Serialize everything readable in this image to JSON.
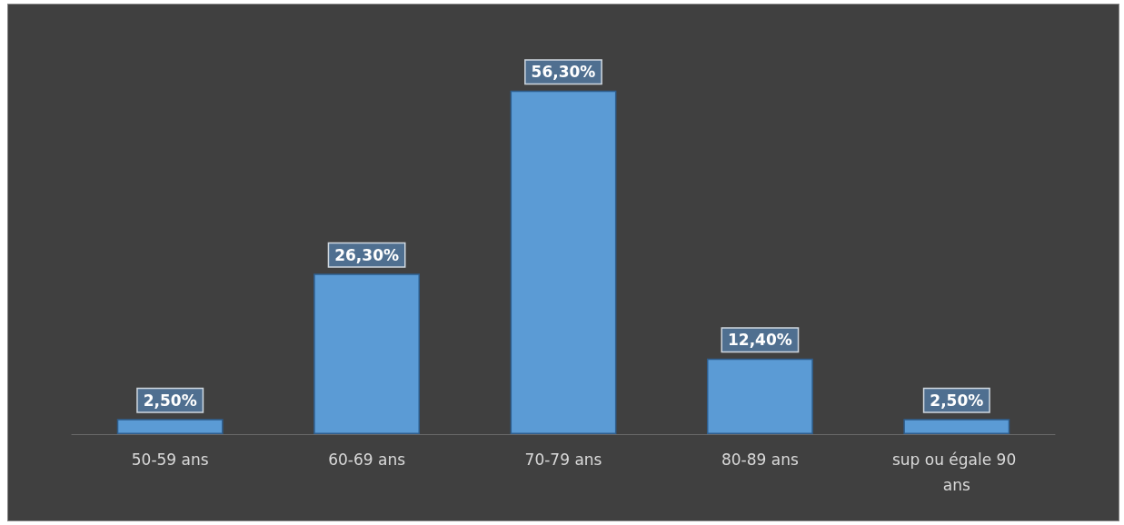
{
  "chart_data": {
    "type": "bar",
    "categories": [
      "50-59 ans",
      "60-69 ans",
      "70-79 ans",
      "80-89 ans",
      "sup ou égale 90 ans"
    ],
    "values": [
      2.5,
      26.3,
      56.3,
      12.4,
      2.5
    ],
    "value_labels": [
      "2,50%",
      "26,30%",
      "56,30%",
      "12,40%",
      "2,50%"
    ],
    "color": "#5b9bd5",
    "grid": false
  }
}
